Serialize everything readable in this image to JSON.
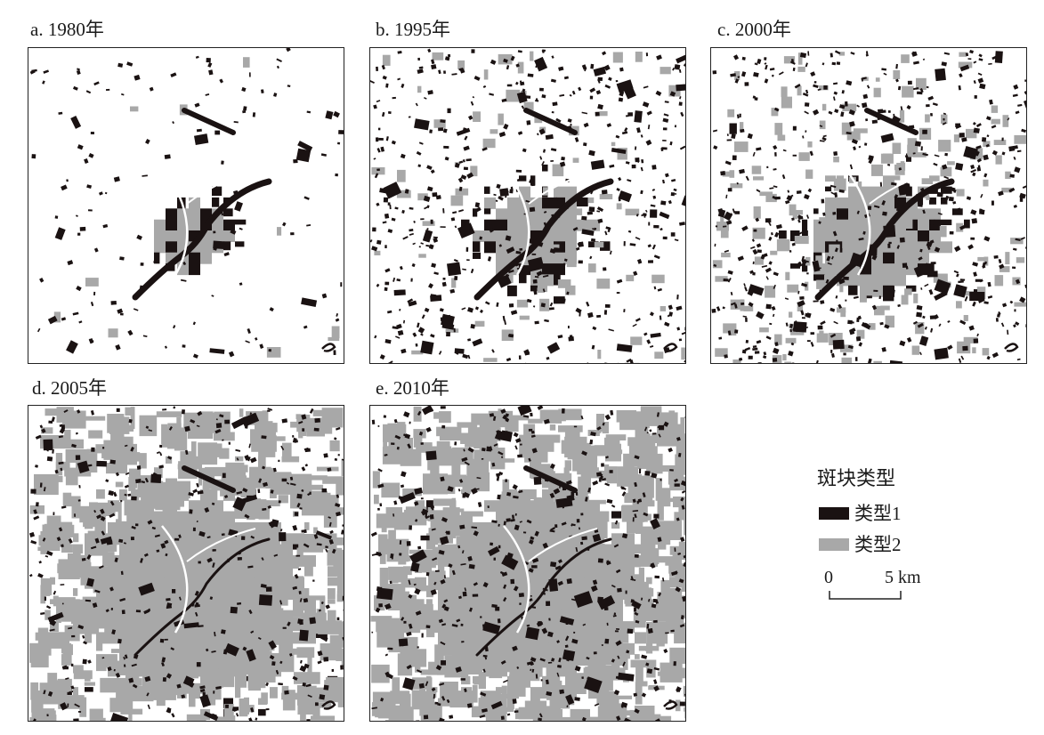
{
  "colors": {
    "type1": "#1a1212",
    "type2": "#a8a8a8",
    "background": "#ffffff",
    "frame": "#222222"
  },
  "panels": [
    {
      "label": "a. 1980年",
      "year": 1980
    },
    {
      "label": "b. 1995年",
      "year": 1995
    },
    {
      "label": "c. 2000年",
      "year": 2000
    },
    {
      "label": "d. 2005年",
      "year": 2005
    },
    {
      "label": "e. 2010年",
      "year": 2010
    }
  ],
  "legend": {
    "title": "斑块类型",
    "items": [
      {
        "label": "类型1",
        "color": "#1a1212"
      },
      {
        "label": "类型2",
        "color": "#a8a8a8"
      }
    ]
  },
  "scale_bar": {
    "start_label": "0",
    "end_label": "5 km"
  }
}
